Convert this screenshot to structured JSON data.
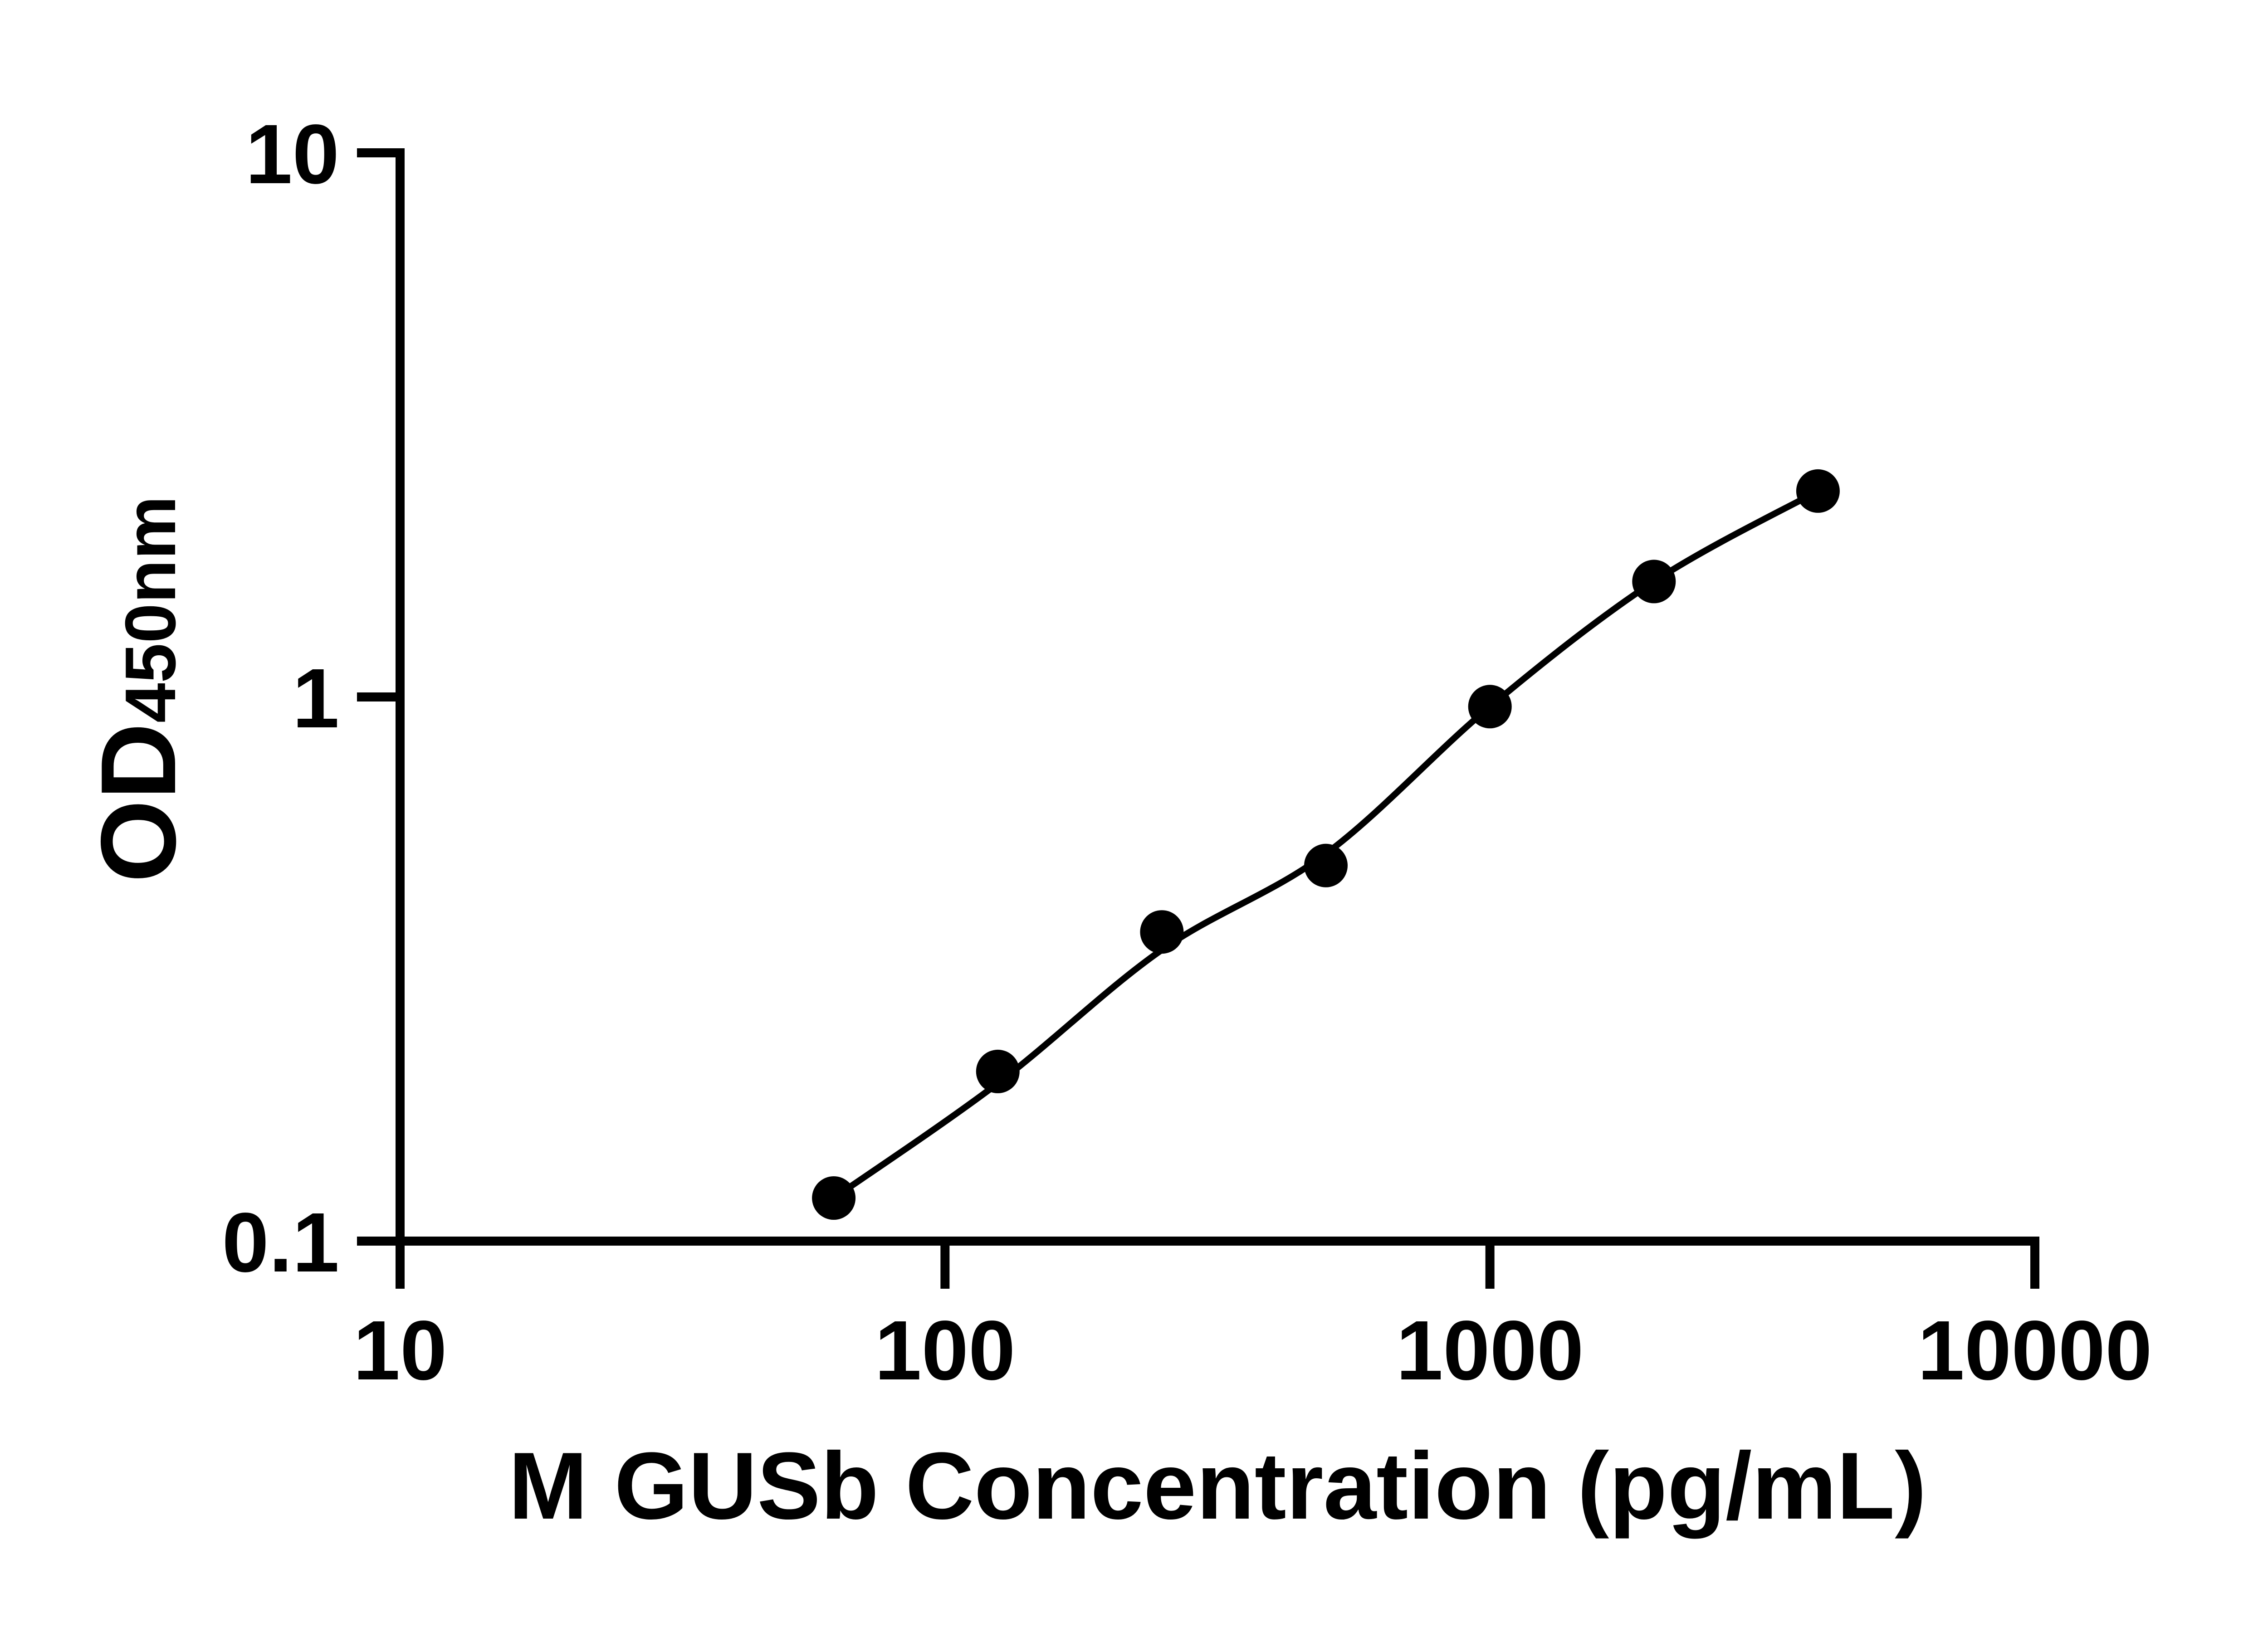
{
  "page": {
    "background_color": "#ffffff",
    "ink_color": "#000000"
  },
  "chart_data": {
    "type": "scatter",
    "title": "",
    "xlabel": "M GUSb Concentration (pg/mL)",
    "ylabel": {
      "main": "OD",
      "sub": "450nm"
    },
    "x_scale": "log10",
    "y_scale": "log10",
    "xlim": [
      10,
      10000
    ],
    "ylim": [
      0.1,
      10
    ],
    "grid": false,
    "legend": "none",
    "x_ticks": [
      {
        "value": 10,
        "label": "10"
      },
      {
        "value": 100,
        "label": "100"
      },
      {
        "value": 1000,
        "label": "1000"
      },
      {
        "value": 10000,
        "label": "10000"
      }
    ],
    "y_ticks": [
      {
        "value": 10,
        "label": "10"
      },
      {
        "value": 1,
        "label": "1"
      },
      {
        "value": 0.1,
        "label": "0.1"
      }
    ],
    "series": [
      {
        "name": "M GUSb standard points",
        "marker": "filled-circle",
        "points": [
          {
            "x": 62.5,
            "od": 0.12
          },
          {
            "x": 125,
            "od": 0.205
          },
          {
            "x": 250,
            "od": 0.37
          },
          {
            "x": 500,
            "od": 0.49
          },
          {
            "x": 1000,
            "od": 0.96
          },
          {
            "x": 2000,
            "od": 1.63
          },
          {
            "x": 4000,
            "od": 2.39
          }
        ]
      }
    ],
    "fit_curve": {
      "name": "standard curve fit line",
      "points": [
        {
          "x": 62.5,
          "od": 0.12
        },
        {
          "x": 125,
          "od": 0.195
        },
        {
          "x": 250,
          "od": 0.343
        },
        {
          "x": 500,
          "od": 0.515
        },
        {
          "x": 1000,
          "od": 0.96
        },
        {
          "x": 2000,
          "od": 1.63
        },
        {
          "x": 4000,
          "od": 2.39
        }
      ]
    }
  }
}
